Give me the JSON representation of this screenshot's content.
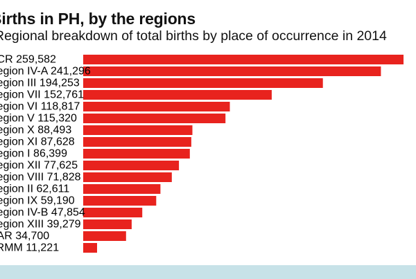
{
  "chart_data": {
    "type": "bar",
    "orientation": "horizontal",
    "title": "Births in PH, by the regions",
    "subtitle": "Regional breakdown of total births by place of occurrence in 2014",
    "categories": [
      "NCR",
      "Region IV-A",
      "Region III",
      "Region VII",
      "Region VI",
      "Region V",
      "Region X",
      "Region XI",
      "Region I",
      "Region XII",
      "Region VIII",
      "Region II",
      "Region IX",
      "Region IV-B",
      "Region XIII",
      "CAR",
      "ARMM"
    ],
    "value_labels": [
      "259,582",
      "241,296",
      "194,253",
      "152,761",
      "118,817",
      "115,320",
      "88,493",
      "87,628",
      "86,399",
      "77,625",
      "71,828",
      "62,611",
      "59,190",
      "47,854",
      "39,279",
      "34,700",
      "11,221"
    ],
    "values": [
      259582,
      241296,
      194253,
      152761,
      118817,
      115320,
      88493,
      87628,
      86399,
      77625,
      71828,
      62611,
      59190,
      47854,
      39279,
      34700,
      11221
    ],
    "bar_color": "#e8231e",
    "grid": false,
    "legend": "none"
  },
  "colors": {
    "bar": "#e8231e",
    "footer": "#c7e2e8",
    "text": "#111111"
  }
}
